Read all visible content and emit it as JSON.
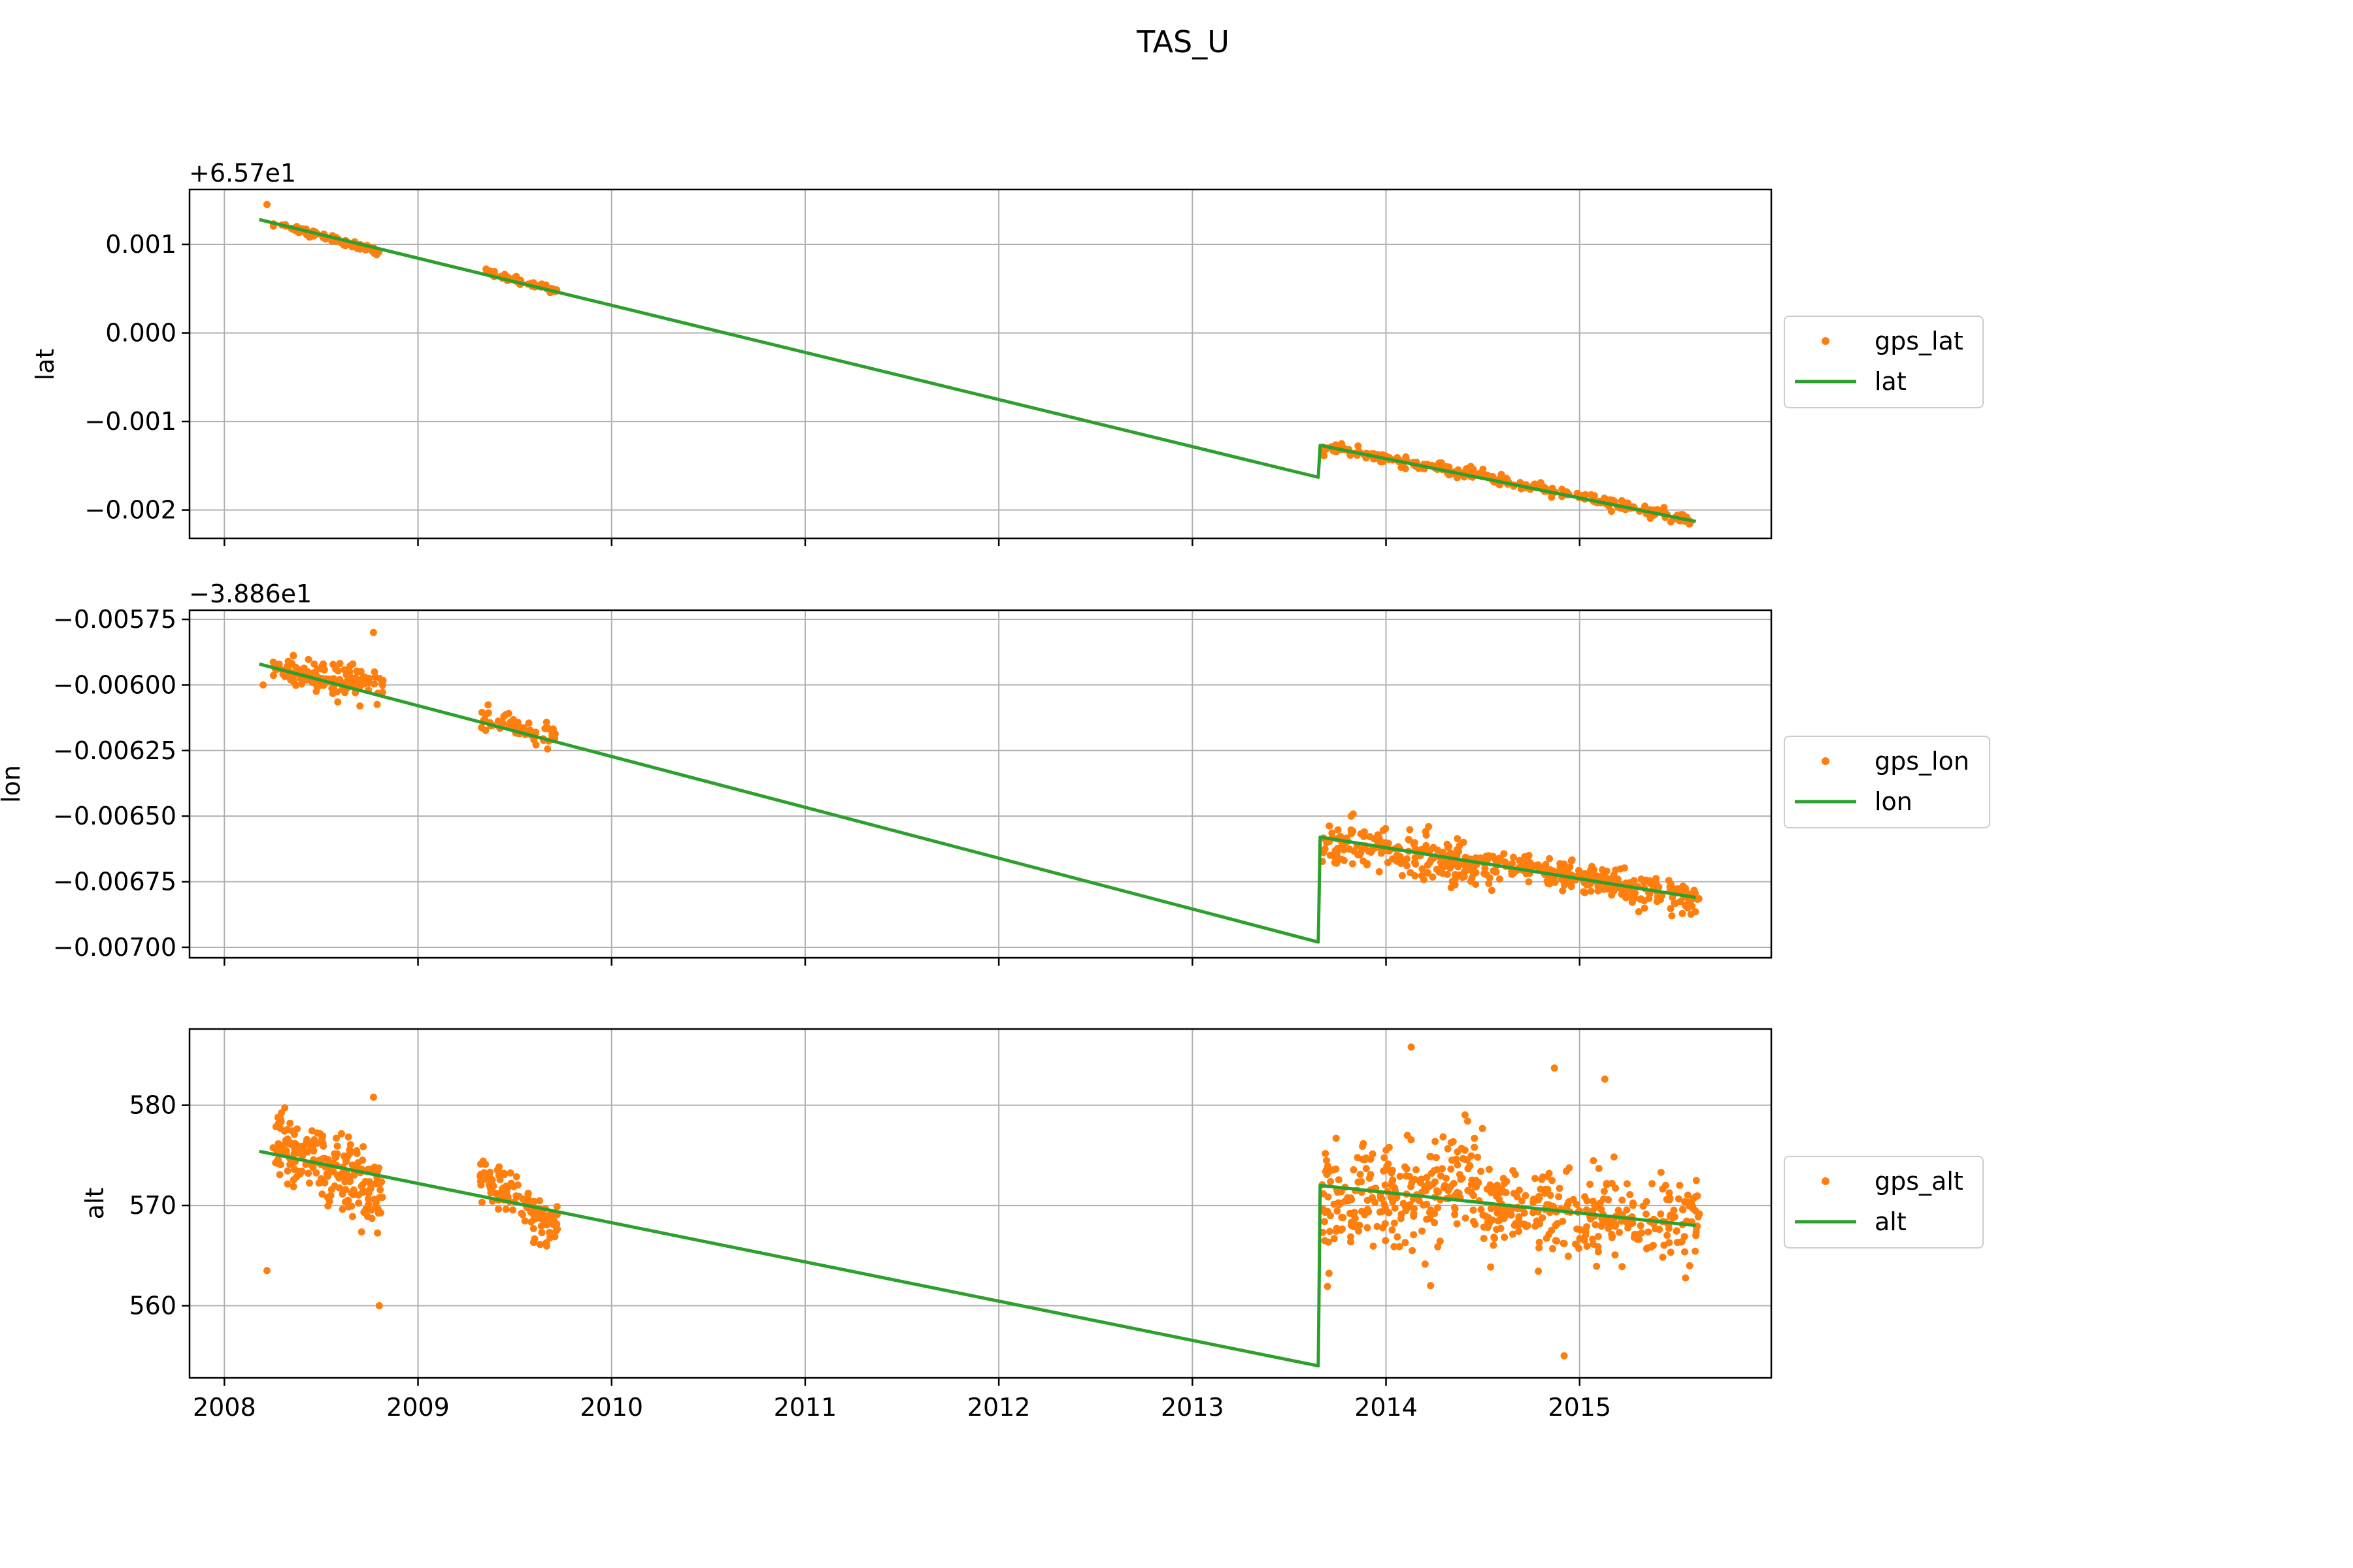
{
  "figure": {
    "title": "TAS_U"
  },
  "colors": {
    "gps": "#ff7f0e",
    "fit": "#2ca02c",
    "grid": "#b0b0b0",
    "axes": "#000000"
  },
  "chart_data": [
    {
      "type": "scatter",
      "ylabel": "lat",
      "offset_label": "+6.57e1",
      "xlim": [
        2007.82,
        2015.99
      ],
      "ylim": [
        -0.00232,
        0.00162
      ],
      "yticks": [
        0.001,
        0.0,
        -0.001,
        -0.002
      ],
      "ytick_labels": [
        "0.001",
        "0.000",
        "−0.001",
        "−0.002"
      ],
      "grid": true,
      "legend": {
        "placement": "outside-right",
        "entries": [
          "gps_lat",
          "lat"
        ]
      },
      "series": [
        {
          "name": "gps_lat",
          "kind": "points",
          "clusters": [
            {
              "x": [
                2008.25,
                2008.8
              ],
              "y": [
                0.00124,
                0.00092
              ],
              "spread": 2e-05,
              "n": 90
            },
            {
              "x": [
                2009.35,
                2009.72
              ],
              "y": [
                0.00068,
                0.00048
              ],
              "spread": 2e-05,
              "n": 60
            },
            {
              "x": [
                2013.67,
                2014.5
              ],
              "y": [
                -0.00128,
                -0.00162
              ],
              "spread": 3e-05,
              "n": 110
            },
            {
              "x": [
                2014.5,
                2015.6
              ],
              "y": [
                -0.00162,
                -0.00213
              ],
              "spread": 3e-05,
              "n": 140
            }
          ],
          "outliers": [
            {
              "x": 2008.22,
              "y": 0.00145
            }
          ]
        },
        {
          "name": "lat",
          "kind": "line",
          "x": [
            2008.18,
            2013.65,
            2013.66,
            2015.6
          ],
          "y": [
            0.00128,
            -0.00163,
            -0.00127,
            -0.00213
          ]
        }
      ]
    },
    {
      "type": "scatter",
      "ylabel": "lon",
      "offset_label": "−3.886e1",
      "xlim": [
        2007.82,
        2015.99
      ],
      "ylim": [
        -0.00704,
        -0.005715
      ],
      "yticks": [
        -0.00575,
        -0.006,
        -0.00625,
        -0.0065,
        -0.00675,
        -0.007
      ],
      "ytick_labels": [
        "−0.00575",
        "−0.00600",
        "−0.00625",
        "−0.00650",
        "−0.00675",
        "−0.00700"
      ],
      "grid": true,
      "legend": {
        "placement": "outside-right",
        "entries": [
          "gps_lon",
          "lon"
        ]
      },
      "series": [
        {
          "name": "gps_lon",
          "kind": "points",
          "clusters": [
            {
              "x": [
                2008.25,
                2008.82
              ],
              "y": [
                -0.00595,
                -0.006
              ],
              "spread": 3e-05,
              "n": 140
            },
            {
              "x": [
                2009.32,
                2009.72
              ],
              "y": [
                -0.00613,
                -0.0062
              ],
              "spread": 2e-05,
              "n": 70
            },
            {
              "x": [
                2013.67,
                2014.55
              ],
              "y": [
                -0.0066,
                -0.0067
              ],
              "spread": 4e-05,
              "n": 220
            },
            {
              "x": [
                2014.55,
                2015.62
              ],
              "y": [
                -0.00668,
                -0.00682
              ],
              "spread": 3e-05,
              "n": 240
            }
          ],
          "outliers": [
            {
              "x": 2008.77,
              "y": -0.0058
            },
            {
              "x": 2008.2,
              "y": -0.006
            },
            {
              "x": 2008.7,
              "y": -0.00608
            },
            {
              "x": 2013.82,
              "y": -0.0065
            },
            {
              "x": 2014.22,
              "y": -0.00654
            }
          ]
        },
        {
          "name": "lon",
          "kind": "line",
          "x": [
            2008.18,
            2013.65,
            2013.66,
            2015.6
          ],
          "y": [
            -0.00592,
            -0.00698,
            -0.00658,
            -0.00681
          ]
        }
      ]
    },
    {
      "type": "scatter",
      "ylabel": "alt",
      "offset_label": "",
      "xlim": [
        2007.82,
        2015.99
      ],
      "ylim": [
        552.8,
        587.6
      ],
      "yticks": [
        580,
        570,
        560
      ],
      "ytick_labels": [
        "580",
        "570",
        "560"
      ],
      "xticks": [
        2008,
        2009,
        2010,
        2011,
        2012,
        2013,
        2014,
        2015
      ],
      "xtick_labels": [
        "2008",
        "2009",
        "2010",
        "2011",
        "2012",
        "2013",
        "2014",
        "2015"
      ],
      "grid": true,
      "legend": {
        "placement": "outside-right",
        "entries": [
          "gps_alt",
          "alt"
        ]
      },
      "series": [
        {
          "name": "gps_alt",
          "kind": "points",
          "clusters": [
            {
              "x": [
                2008.25,
                2008.82
              ],
              "y": [
                576.5,
                571
              ],
              "spread": 1.8,
              "n": 220
            },
            {
              "x": [
                2009.32,
                2009.72
              ],
              "y": [
                573,
                567.5
              ],
              "spread": 1.1,
              "n": 120
            },
            {
              "x": [
                2013.67,
                2014.5
              ],
              "y": [
                570.5,
                572.5
              ],
              "spread": 2.6,
              "n": 260
            },
            {
              "x": [
                2014.5,
                2015.62
              ],
              "y": [
                569.5,
                568
              ],
              "spread": 2.3,
              "n": 300
            }
          ],
          "outliers": [
            {
              "x": 2008.22,
              "y": 563.5
            },
            {
              "x": 2008.77,
              "y": 580.8
            },
            {
              "x": 2008.8,
              "y": 560
            },
            {
              "x": 2014.13,
              "y": 585.8
            },
            {
              "x": 2014.23,
              "y": 562
            },
            {
              "x": 2014.87,
              "y": 583.7
            },
            {
              "x": 2015.13,
              "y": 582.6
            },
            {
              "x": 2014.92,
              "y": 555
            }
          ]
        },
        {
          "name": "alt",
          "kind": "line",
          "x": [
            2008.18,
            2013.65,
            2013.66,
            2015.6
          ],
          "y": [
            575.4,
            554,
            572,
            568
          ]
        }
      ]
    }
  ]
}
